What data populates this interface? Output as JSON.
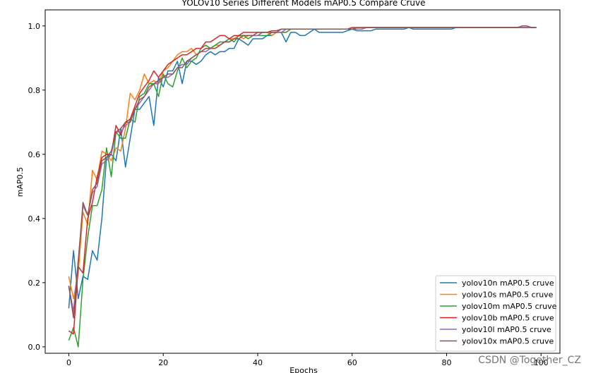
{
  "chart_data": {
    "type": "line",
    "title": "YOLOv10 Series Different Models mAP0.5 Compare Cruve",
    "xlabel": "Epochs",
    "ylabel": "mAP0.5",
    "xlim": [
      -5,
      104
    ],
    "ylim": [
      -0.02,
      1.05
    ],
    "xticks": [
      0,
      20,
      40,
      60,
      80,
      100
    ],
    "yticks": [
      0.0,
      0.2,
      0.4,
      0.6,
      0.8,
      1.0
    ],
    "grid": false,
    "legend_position": "lower-right",
    "x_start": 0,
    "x_step": 1,
    "series": [
      {
        "name": "yolov10n mAP0.5 cruve",
        "color": "#1f77b4",
        "values": [
          0.12,
          0.3,
          0.15,
          0.22,
          0.21,
          0.3,
          0.27,
          0.4,
          0.59,
          0.6,
          0.58,
          0.68,
          0.56,
          0.65,
          0.74,
          0.74,
          0.76,
          0.78,
          0.69,
          0.84,
          0.81,
          0.86,
          0.86,
          0.89,
          0.82,
          0.89,
          0.89,
          0.88,
          0.89,
          0.91,
          0.92,
          0.91,
          0.92,
          0.92,
          0.93,
          0.93,
          0.96,
          0.95,
          0.94,
          0.96,
          0.96,
          0.96,
          0.97,
          0.97,
          0.98,
          0.98,
          0.95,
          0.98,
          0.98,
          0.97,
          0.97,
          0.98,
          0.99,
          0.98,
          0.98,
          0.98,
          0.98,
          0.98,
          0.98,
          0.985,
          0.99,
          0.985,
          0.985,
          0.985,
          0.985,
          0.99,
          0.99,
          0.99,
          0.99,
          0.99,
          0.99,
          0.99,
          0.995,
          0.99,
          0.99,
          0.99,
          0.99,
          0.99,
          0.99,
          0.99,
          0.99,
          0.99,
          0.995,
          0.995,
          0.995,
          0.995,
          0.995,
          0.995,
          0.995,
          0.995,
          0.995,
          0.995,
          0.995,
          0.995,
          0.995,
          0.995,
          0.995,
          0.995,
          0.995,
          0.995
        ]
      },
      {
        "name": "yolov10s mAP0.5 cruve",
        "color": "#ff7f0e",
        "values": [
          0.22,
          0.15,
          0.23,
          0.42,
          0.38,
          0.55,
          0.52,
          0.61,
          0.6,
          0.58,
          0.62,
          0.61,
          0.68,
          0.79,
          0.77,
          0.8,
          0.85,
          0.82,
          0.83,
          0.82,
          0.86,
          0.87,
          0.89,
          0.91,
          0.92,
          0.92,
          0.93,
          0.91,
          0.92,
          0.93,
          0.93,
          0.94,
          0.94,
          0.95,
          0.96,
          0.96,
          0.97,
          0.96,
          0.97,
          0.97,
          0.97,
          0.98,
          0.98,
          0.97,
          0.98,
          0.98,
          0.98,
          0.99,
          0.99,
          0.99,
          0.99,
          0.99,
          0.99,
          0.99,
          0.99,
          0.99,
          0.99,
          0.99,
          0.99,
          0.99,
          0.99,
          0.99,
          0.99,
          0.995,
          0.995,
          0.995,
          0.995,
          0.995,
          0.995,
          0.995,
          0.995,
          0.995,
          0.995,
          0.995,
          0.995,
          0.995,
          0.995,
          0.995,
          0.995,
          0.995,
          0.995,
          0.995,
          0.995,
          0.995,
          0.995,
          0.995,
          0.995,
          0.995,
          0.995,
          0.995,
          0.995,
          0.995,
          0.995,
          0.995,
          0.995,
          0.995,
          0.995,
          0.995,
          0.995,
          0.995
        ]
      },
      {
        "name": "yolov10m mAP0.5 cruve",
        "color": "#2ca02c",
        "values": [
          0.02,
          0.06,
          0.0,
          0.21,
          0.34,
          0.44,
          0.44,
          0.49,
          0.62,
          0.53,
          0.67,
          0.65,
          0.65,
          0.71,
          0.7,
          0.78,
          0.79,
          0.82,
          0.82,
          0.78,
          0.85,
          0.82,
          0.81,
          0.86,
          0.9,
          0.87,
          0.89,
          0.9,
          0.93,
          0.94,
          0.93,
          0.94,
          0.95,
          0.95,
          0.96,
          0.95,
          0.97,
          0.97,
          0.96,
          0.97,
          0.97,
          0.97,
          0.97,
          0.98,
          0.98,
          0.98,
          0.98,
          0.99,
          0.99,
          0.99,
          0.99,
          0.99,
          0.99,
          0.99,
          0.99,
          0.99,
          0.99,
          0.99,
          0.99,
          0.99,
          0.99,
          0.99,
          0.99,
          0.995,
          0.995,
          0.995,
          0.995,
          0.995,
          0.995,
          0.995,
          0.995,
          0.995,
          0.995,
          0.995,
          0.995,
          0.995,
          0.995,
          0.995,
          0.995,
          0.995,
          0.995,
          0.995,
          0.995,
          0.995,
          0.995,
          0.995,
          0.995,
          0.995,
          0.995,
          0.995,
          0.995,
          0.995,
          0.995,
          0.995,
          0.995,
          0.995,
          0.995,
          0.995,
          0.995,
          0.995
        ]
      },
      {
        "name": "yolov10b mAP0.5 cruve",
        "color": "#d62728",
        "values": [
          0.05,
          0.04,
          0.25,
          0.23,
          0.4,
          0.45,
          0.53,
          0.59,
          0.6,
          0.6,
          0.69,
          0.66,
          0.7,
          0.71,
          0.75,
          0.79,
          0.81,
          0.83,
          0.86,
          0.84,
          0.86,
          0.88,
          0.89,
          0.9,
          0.91,
          0.91,
          0.92,
          0.93,
          0.93,
          0.95,
          0.95,
          0.96,
          0.97,
          0.97,
          0.96,
          0.97,
          0.97,
          0.98,
          0.98,
          0.98,
          0.98,
          0.98,
          0.98,
          0.985,
          0.985,
          0.99,
          0.99,
          0.99,
          0.99,
          0.99,
          0.99,
          0.99,
          0.99,
          0.99,
          0.99,
          0.99,
          0.99,
          0.99,
          0.99,
          0.99,
          0.995,
          0.995,
          0.995,
          0.995,
          0.995,
          0.995,
          0.995,
          0.995,
          0.995,
          0.995,
          0.995,
          0.995,
          0.995,
          0.995,
          0.995,
          0.995,
          0.995,
          0.995,
          0.995,
          0.995,
          0.995,
          0.995,
          0.995,
          0.995,
          0.995,
          0.995,
          0.995,
          0.995,
          0.995,
          0.995,
          0.995,
          0.995,
          0.995,
          0.995,
          0.995,
          0.995,
          0.995,
          0.995,
          0.995,
          0.995
        ]
      },
      {
        "name": "yolov10l mAP0.5 cruve",
        "color": "#9467bd",
        "values": [
          0.19,
          0.11,
          0.27,
          0.44,
          0.41,
          0.48,
          0.5,
          0.57,
          0.58,
          0.6,
          0.67,
          0.67,
          0.69,
          0.7,
          0.74,
          0.76,
          0.78,
          0.8,
          0.82,
          0.82,
          0.84,
          0.84,
          0.85,
          0.87,
          0.88,
          0.88,
          0.9,
          0.91,
          0.92,
          0.92,
          0.93,
          0.93,
          0.94,
          0.95,
          0.95,
          0.96,
          0.96,
          0.97,
          0.97,
          0.97,
          0.97,
          0.98,
          0.98,
          0.98,
          0.98,
          0.98,
          0.99,
          0.99,
          0.99,
          0.99,
          0.99,
          0.99,
          0.99,
          0.99,
          0.99,
          0.99,
          0.99,
          0.99,
          0.99,
          0.99,
          0.99,
          0.99,
          0.99,
          0.995,
          0.995,
          0.995,
          0.995,
          0.995,
          0.995,
          0.995,
          0.995,
          0.995,
          0.995,
          0.995,
          0.995,
          0.995,
          0.995,
          0.995,
          0.995,
          0.995,
          0.995,
          0.995,
          0.995,
          0.995,
          0.995,
          0.995,
          0.995,
          0.995,
          0.995,
          0.995,
          0.995,
          0.995,
          0.995,
          0.995,
          0.995,
          0.995,
          0.995,
          0.995,
          0.995,
          0.995
        ]
      },
      {
        "name": "yolov10x mAP0.5 cruve",
        "color": "#8c564b",
        "values": [
          0.19,
          0.09,
          0.26,
          0.45,
          0.41,
          0.49,
          0.51,
          0.58,
          0.59,
          0.61,
          0.67,
          0.68,
          0.7,
          0.7,
          0.74,
          0.77,
          0.78,
          0.81,
          0.82,
          0.83,
          0.84,
          0.85,
          0.85,
          0.87,
          0.87,
          0.89,
          0.9,
          0.91,
          0.92,
          0.93,
          0.93,
          0.93,
          0.94,
          0.95,
          0.95,
          0.96,
          0.96,
          0.97,
          0.97,
          0.97,
          0.98,
          0.98,
          0.98,
          0.98,
          0.98,
          0.99,
          0.99,
          0.99,
          0.99,
          0.99,
          0.99,
          0.99,
          0.99,
          0.99,
          0.99,
          0.99,
          0.99,
          0.99,
          0.99,
          0.99,
          0.99,
          0.995,
          0.995,
          0.995,
          0.995,
          0.995,
          0.995,
          0.995,
          0.995,
          0.995,
          0.995,
          0.995,
          0.995,
          0.995,
          0.995,
          0.995,
          0.995,
          0.995,
          0.995,
          0.995,
          0.995,
          0.995,
          0.995,
          0.995,
          0.995,
          0.995,
          0.995,
          0.995,
          0.995,
          0.995,
          0.995,
          0.995,
          0.995,
          0.995,
          0.995,
          0.995,
          1.0,
          1.0,
          0.995,
          0.995
        ]
      }
    ]
  },
  "watermark": "CSDN @Together_CZ"
}
